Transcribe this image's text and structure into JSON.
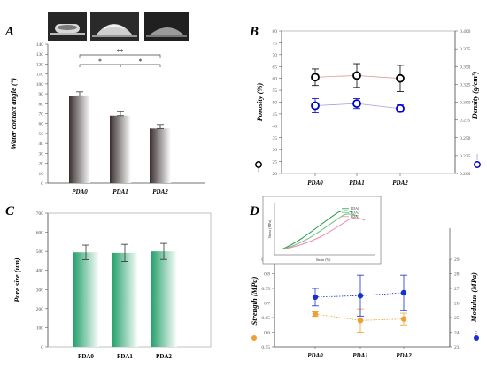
{
  "panels": {
    "A": {
      "label": "A",
      "chart_data": {
        "type": "bar",
        "categories": [
          "PDA0",
          "PDA1",
          "PDA2"
        ],
        "values": [
          88,
          68,
          55
        ],
        "errors": [
          4,
          4,
          4
        ],
        "ylabel": "Water contact angle (°)",
        "ylim": [
          0,
          140
        ],
        "yticks": [
          "0",
          "10",
          "20",
          "30",
          "40",
          "50",
          "60",
          "70",
          "80",
          "90",
          "100",
          "110",
          "120",
          "130",
          "140"
        ],
        "annotations": [
          "**",
          "*",
          "*"
        ],
        "bar_gradient": [
          "#3a2f2f",
          "#ffffff"
        ]
      }
    },
    "B": {
      "label": "B",
      "chart_data": {
        "type": "scatter",
        "categories": [
          "PDA0",
          "PDA1",
          "PDA2"
        ],
        "series": [
          {
            "name": "Porosity (%)",
            "axis": "left",
            "color": "#000000",
            "values": [
              60.5,
              61.2,
              60.0
            ],
            "errors": [
              3.5,
              5.0,
              5.5
            ]
          },
          {
            "name": "Density (g/cm³)",
            "axis": "right",
            "color": "#0000cc",
            "values": [
              0.295,
              0.298,
              0.291
            ],
            "errors": [
              0.01,
              0.007,
              0.005
            ]
          }
        ],
        "ylabel_left": "Porosity (%)",
        "ylabel_right": "Density (g/cm³)",
        "ylim_left": [
          20,
          80
        ],
        "ylim_right": [
          0.2,
          0.4
        ],
        "yticks_left": [
          "20",
          "25",
          "30",
          "35",
          "40",
          "45",
          "50",
          "55",
          "60",
          "65",
          "70",
          "75",
          "80"
        ],
        "yticks_right": [
          "0.200",
          "0.225",
          "0.250",
          "0.275",
          "0.300",
          "0.325",
          "0.350",
          "0.375",
          "0.400"
        ],
        "line_colors": [
          "#d9a0a0",
          "#a0a0e0"
        ]
      }
    },
    "C": {
      "label": "C",
      "chart_data": {
        "type": "bar",
        "categories": [
          "PDA0",
          "PDA1",
          "PDA2"
        ],
        "values": [
          495,
          492,
          500
        ],
        "errors": [
          38,
          45,
          42
        ],
        "ylabel": "Pore size (um)",
        "ylim": [
          0,
          700
        ],
        "yticks": [
          "0",
          "100",
          "200",
          "300",
          "400",
          "500",
          "600",
          "700"
        ],
        "bar_gradient": [
          "#1f9e68",
          "#ffffff"
        ]
      }
    },
    "D": {
      "label": "D",
      "chart_data": {
        "type": "scatter",
        "categories": [
          "PDA0",
          "PDA1",
          "PDA2"
        ],
        "series": [
          {
            "name": "Strength (MPa)",
            "axis": "left",
            "color": "#f0a030",
            "values": [
              0.662,
              0.64,
              0.645
            ],
            "errors": [
              0.008,
              0.04,
              0.02
            ]
          },
          {
            "name": "Modulus (MPa)",
            "axis": "right",
            "color": "#1a2fd0",
            "values": [
              26.4,
              26.5,
              26.7
            ],
            "errors": [
              0.6,
              1.4,
              1.2
            ]
          }
        ],
        "ylabel_left": "Strength (MPa)",
        "ylabel_right": "Modulus (MPa)",
        "ylim_left": [
          0.55,
          0.85
        ],
        "ylim_right": [
          23,
          29
        ],
        "yticks_left": [
          "0.55",
          "0.6",
          "0.65",
          "0.7",
          "0.75",
          "0.8",
          "0.85"
        ],
        "yticks_right": [
          "23",
          "24",
          "25",
          "26",
          "27",
          "28",
          "29"
        ],
        "inset": {
          "xlabel": "Strain (%)",
          "ylabel": "Stress (MPa)",
          "legend": [
            "PDA0",
            "PDA2",
            "PDA1"
          ]
        }
      }
    }
  }
}
